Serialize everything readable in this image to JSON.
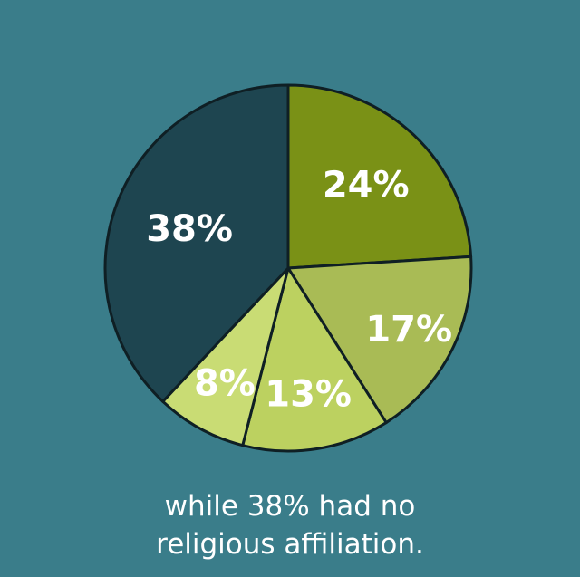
{
  "chart_data": {
    "type": "pie",
    "categories": [
      "",
      "",
      "",
      "",
      ""
    ],
    "values": [
      24,
      17,
      13,
      8,
      38
    ],
    "labels": [
      "24%",
      "17%",
      "13%",
      "8%",
      "38%"
    ],
    "colors": [
      "#7a9116",
      "#a9bb55",
      "#bcd160",
      "#c9dc74",
      "#1e4550"
    ],
    "start_angle_deg": 0,
    "direction": "clockwise",
    "legend": "none"
  },
  "caption": {
    "line1": "while 38% had no",
    "line2": "religious affiliation."
  }
}
